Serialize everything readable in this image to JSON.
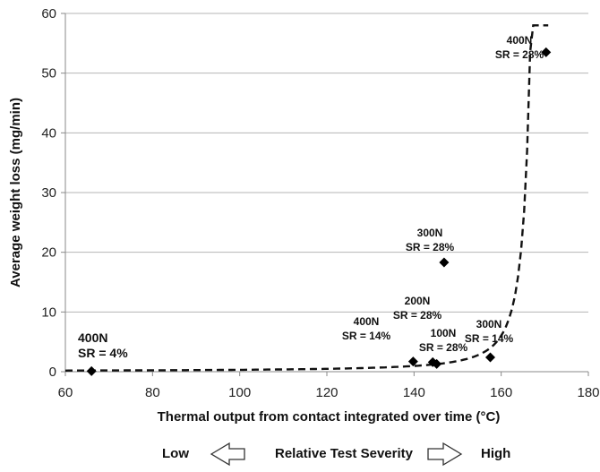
{
  "chart_data": {
    "type": "scatter",
    "xlabel": "Thermal output from contact integrated over time (°C)",
    "ylabel": "Average weight loss (mg/min)",
    "xlim": [
      60,
      180
    ],
    "ylim": [
      0,
      60
    ],
    "xticks": [
      60,
      80,
      100,
      120,
      140,
      160,
      180
    ],
    "yticks": [
      0,
      10,
      20,
      30,
      40,
      50,
      60
    ],
    "grid": "horizontal",
    "points": [
      {
        "x": 66,
        "y": 0.1
      },
      {
        "x": 139.8,
        "y": 1.7
      },
      {
        "x": 144.3,
        "y": 1.6
      },
      {
        "x": 145.2,
        "y": 1.3
      },
      {
        "x": 146.9,
        "y": 18.3
      },
      {
        "x": 157.5,
        "y": 2.4
      },
      {
        "x": 170.3,
        "y": 53.5
      }
    ],
    "trendline": {
      "style": "dashed",
      "type": "exponential-like",
      "x_range": [
        60,
        170.8
      ]
    },
    "annotations": [
      {
        "lines": [
          "400N",
          "SR = 4%"
        ],
        "x": 66,
        "y": 0.1
      },
      {
        "lines": [
          "400N",
          "SR = 14%"
        ],
        "x": 139.8,
        "y": 1.7
      },
      {
        "lines": [
          "200N",
          "SR = 28%"
        ],
        "x": 144.3,
        "y": 1.6
      },
      {
        "lines": [
          "100N",
          "SR = 28%"
        ],
        "x": 145.2,
        "y": 1.3
      },
      {
        "lines": [
          "300N",
          "SR = 28%"
        ],
        "x": 146.9,
        "y": 18.3
      },
      {
        "lines": [
          "300N",
          "SR = 14%"
        ],
        "x": 157.5,
        "y": 2.4
      },
      {
        "lines": [
          "400N",
          "SR = 28%"
        ],
        "x": 170.3,
        "y": 53.5
      }
    ]
  },
  "severity": {
    "low": "Low",
    "label": "Relative Test Severity",
    "high": "High"
  }
}
